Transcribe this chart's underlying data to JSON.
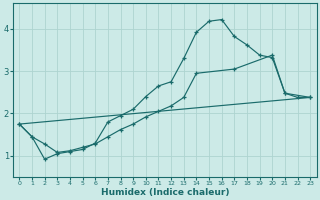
{
  "bg_color": "#cceae7",
  "grid_color": "#aed4d0",
  "line_color": "#1a6b6b",
  "xlabel": "Humidex (Indice chaleur)",
  "xlim": [
    -0.5,
    23.5
  ],
  "ylim": [
    0.5,
    4.6
  ],
  "yticks": [
    1,
    2,
    3,
    4
  ],
  "xticks": [
    0,
    1,
    2,
    3,
    4,
    5,
    6,
    7,
    8,
    9,
    10,
    11,
    12,
    13,
    14,
    15,
    16,
    17,
    18,
    19,
    20,
    21,
    22,
    23
  ],
  "line1_x": [
    0,
    1,
    2,
    3,
    4,
    5,
    6,
    7,
    8,
    9,
    10,
    11,
    12,
    13,
    14,
    15,
    16,
    17,
    18,
    19,
    20,
    21,
    22,
    23
  ],
  "line1_y": [
    1.75,
    1.45,
    0.92,
    1.05,
    1.1,
    1.15,
    1.3,
    1.8,
    1.95,
    2.1,
    2.4,
    2.65,
    2.75,
    3.3,
    3.92,
    4.18,
    4.22,
    3.82,
    3.62,
    3.38,
    3.32,
    2.48,
    2.38,
    2.38
  ],
  "line2_x": [
    0,
    1,
    2,
    3,
    4,
    5,
    6,
    7,
    8,
    9,
    10,
    11,
    12,
    13,
    14,
    17,
    20,
    21,
    23
  ],
  "line2_y": [
    1.75,
    1.45,
    1.28,
    1.08,
    1.12,
    1.2,
    1.28,
    1.45,
    1.62,
    1.75,
    1.92,
    2.05,
    2.18,
    2.38,
    2.95,
    3.05,
    3.38,
    2.48,
    2.38
  ],
  "line3_x": [
    0,
    23
  ],
  "line3_y": [
    1.75,
    2.38
  ]
}
